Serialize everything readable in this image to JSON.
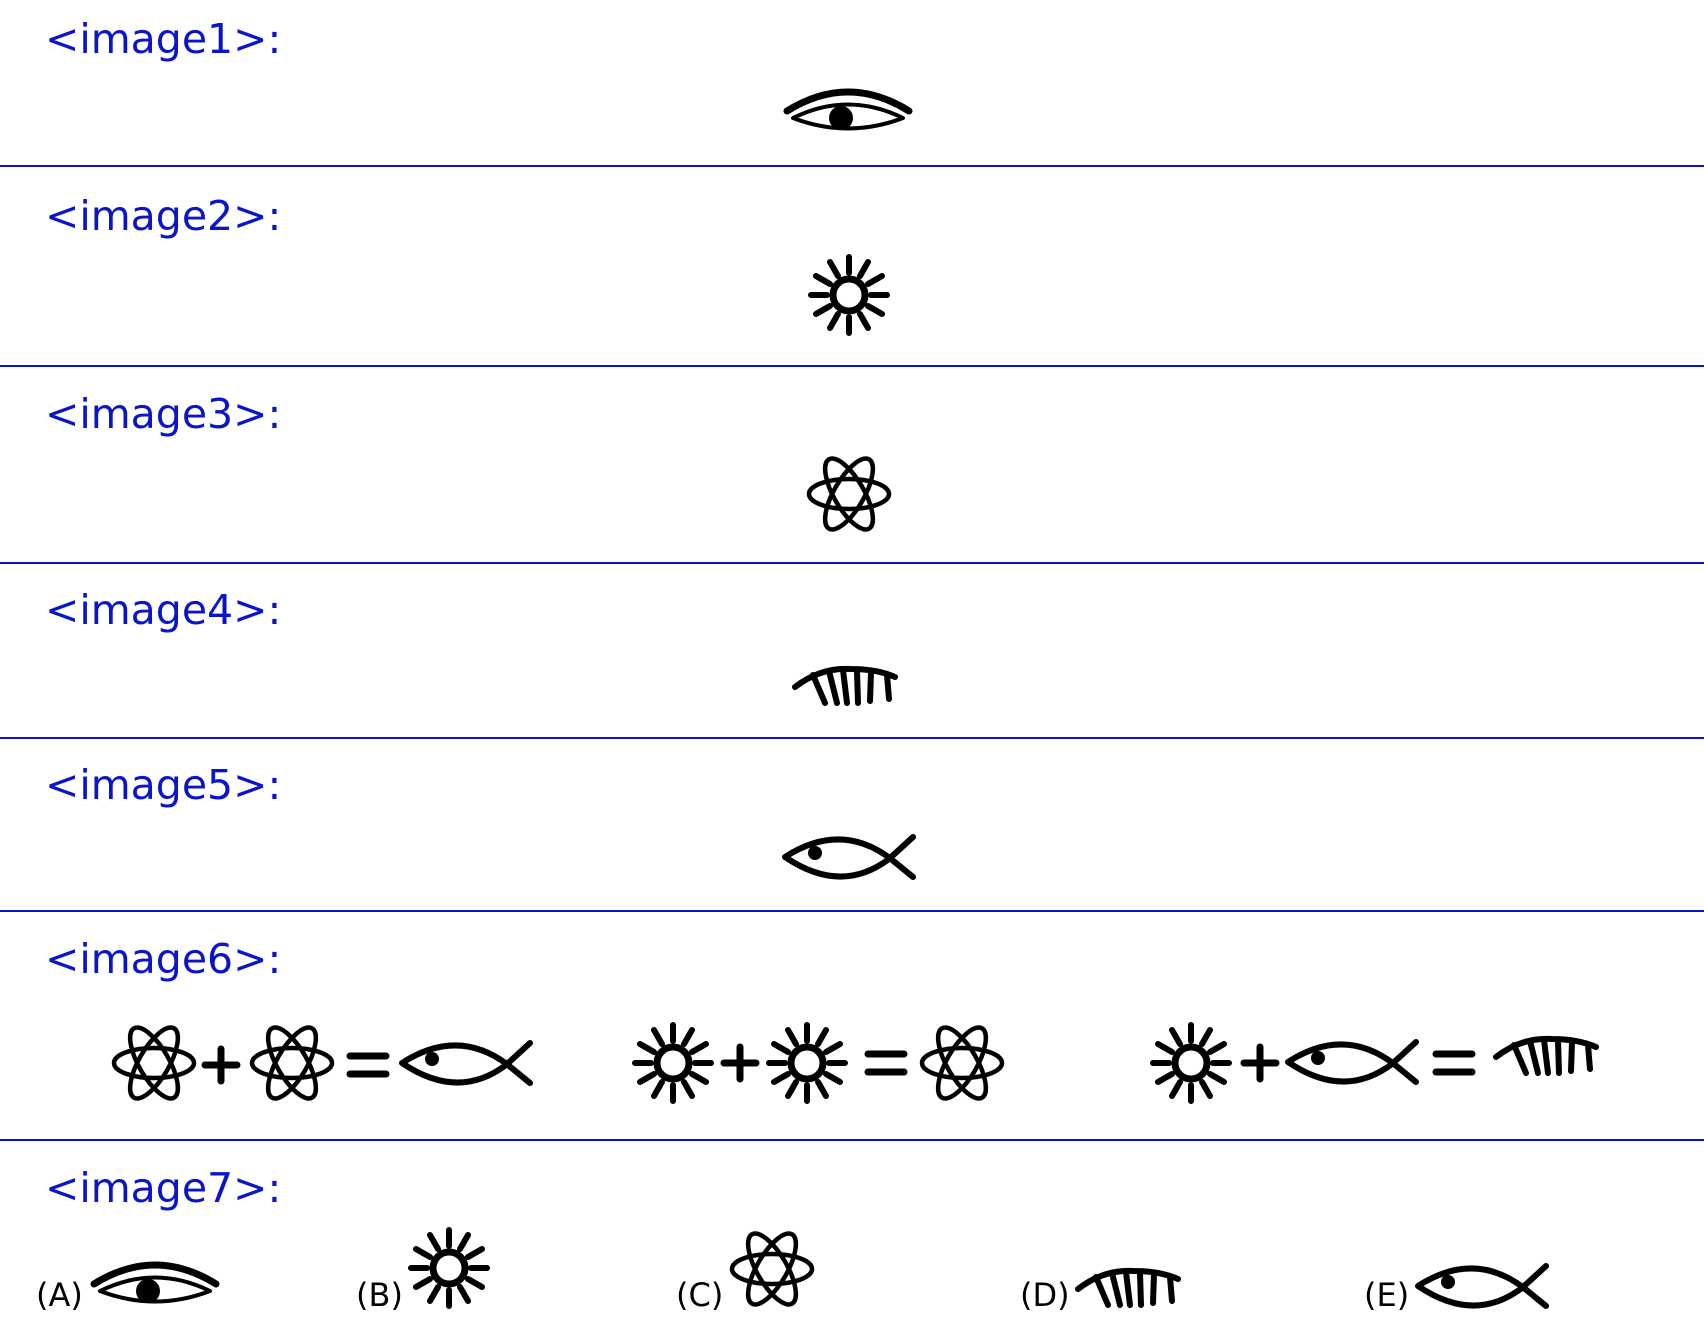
{
  "labels": {
    "image1": "<image1>:",
    "image2": "<image2>:",
    "image3": "<image3>:",
    "image4": "<image4>:",
    "image5": "<image5>:",
    "image6": "<image6>:",
    "image7": "<image7>:"
  },
  "equations": [
    {
      "left": "atom-icon",
      "operator": "+",
      "right": "atom-icon",
      "equals": "=",
      "result": "fish-icon"
    },
    {
      "left": "sun-icon",
      "operator": "+",
      "right": "sun-icon",
      "equals": "=",
      "result": "atom-icon"
    },
    {
      "left": "sun-icon",
      "operator": "+",
      "right": "fish-icon",
      "equals": "=",
      "result": "comb-icon"
    }
  ],
  "options": [
    {
      "label": "(A)",
      "icon": "eye-icon"
    },
    {
      "label": "(B)",
      "icon": "sun-icon"
    },
    {
      "label": "(C)",
      "icon": "atom-icon"
    },
    {
      "label": "(D)",
      "icon": "comb-icon"
    },
    {
      "label": "(E)",
      "icon": "fish-icon"
    }
  ],
  "colors": {
    "label": "#0a14c8",
    "separator": "#0a14c8",
    "glyph": "#000000"
  }
}
